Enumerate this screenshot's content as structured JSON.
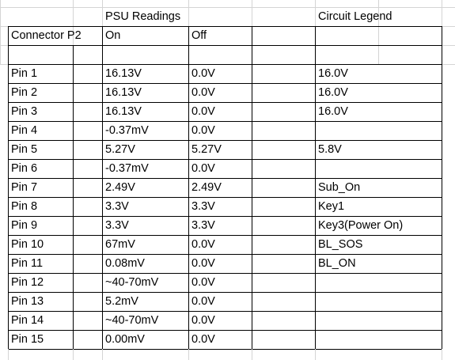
{
  "sheet": {
    "header_row": {
      "psu_readings": "PSU Readings",
      "circuit_legend": "Circuit Legend"
    },
    "column_headers": {
      "connector": "Connector P2",
      "on": "On",
      "off": "Off"
    },
    "rows": [
      {
        "pin": "Pin 1",
        "on": "16.13V",
        "off": "0.0V",
        "legend": "16.0V"
      },
      {
        "pin": "Pin 2",
        "on": "16.13V",
        "off": "0.0V",
        "legend": "16.0V"
      },
      {
        "pin": "Pin 3",
        "on": "16.13V",
        "off": "0.0V",
        "legend": "16.0V"
      },
      {
        "pin": "Pin 4",
        "on": "-0.37mV",
        "off": "0.0V",
        "legend": ""
      },
      {
        "pin": "Pin 5",
        "on": "5.27V",
        "off": "5.27V",
        "legend": "5.8V"
      },
      {
        "pin": "Pin 6",
        "on": "-0.37mV",
        "off": "0.0V",
        "legend": ""
      },
      {
        "pin": "Pin 7",
        "on": "2.49V",
        "off": "2.49V",
        "legend": "Sub_On"
      },
      {
        "pin": "Pin 8",
        "on": "3.3V",
        "off": "3.3V",
        "legend": "Key1"
      },
      {
        "pin": "Pin 9",
        "on": "3.3V",
        "off": "3.3V",
        "legend": "Key3(Power On)"
      },
      {
        "pin": "Pin 10",
        "on": "67mV",
        "off": "0.0V",
        "legend": "BL_SOS"
      },
      {
        "pin": "Pin 11",
        "on": "0.08mV",
        "off": "0.0V",
        "legend": "BL_ON"
      },
      {
        "pin": "Pin 12",
        "on": "~40-70mV",
        "off": "0.0V",
        "legend": ""
      },
      {
        "pin": "Pin 13",
        "on": "5.2mV",
        "off": "0.0V",
        "legend": ""
      },
      {
        "pin": "Pin 14",
        "on": "~40-70mV",
        "off": "0.0V",
        "legend": ""
      },
      {
        "pin": "Pin 15",
        "on": "0.00mV",
        "off": "0.0V",
        "legend": ""
      }
    ]
  }
}
